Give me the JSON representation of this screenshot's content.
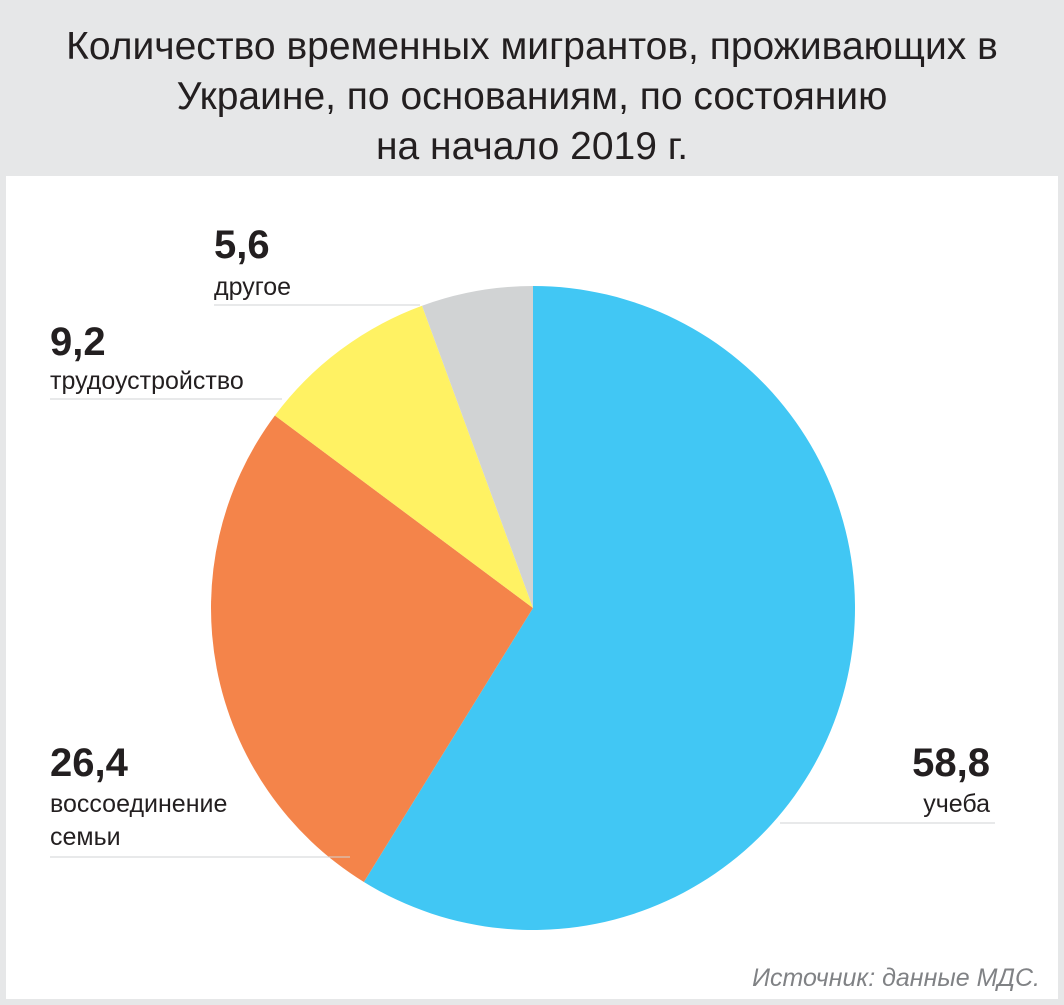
{
  "title": "Количество временных мигрантов, проживающих в\nУкраине, по основаниям, по состоянию\nна начало 2019 г.",
  "source": "Источник: данные МДС.",
  "chart_data": {
    "type": "pie",
    "title": "Количество временных мигрантов, проживающих в Украине, по основаниям, по состоянию на начало 2019 г.",
    "slices": [
      {
        "label": "учеба",
        "label_lines": [
          "учеба"
        ],
        "value": 58.8,
        "display": "58,8",
        "color": "#41c7f4"
      },
      {
        "label": "воссоединение семьи",
        "label_lines": [
          "воссоединение",
          "семьи"
        ],
        "value": 26.4,
        "display": "26,4",
        "color": "#f4844a"
      },
      {
        "label": "трудоустройство",
        "label_lines": [
          "трудоустройство"
        ],
        "value": 9.2,
        "display": "9,2",
        "color": "#fff263"
      },
      {
        "label": "другое",
        "label_lines": [
          "другое"
        ],
        "value": 5.6,
        "display": "5,6",
        "color": "#d1d3d4"
      }
    ]
  }
}
